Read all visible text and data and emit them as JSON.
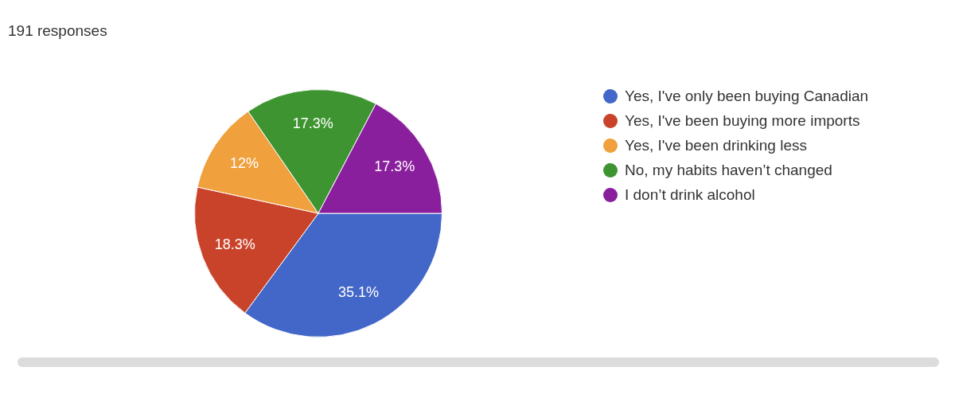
{
  "chart_data": {
    "type": "pie",
    "title": "191 responses",
    "categories": [
      "Yes, I've only been buying Canadian",
      "Yes, I've been buying more imports",
      "Yes, I've been drinking less",
      "No, my habits haven’t changed",
      "I don’t drink alcohol"
    ],
    "values": [
      35.1,
      18.3,
      12,
      17.3,
      17.3
    ],
    "colors": [
      "#4267c8",
      "#c9432a",
      "#f0a03c",
      "#3f9432",
      "#8a1f9e"
    ],
    "value_labels": [
      "35.1%",
      "18.3%",
      "12%",
      "17.3%",
      "17.3%"
    ],
    "legend": "right"
  }
}
